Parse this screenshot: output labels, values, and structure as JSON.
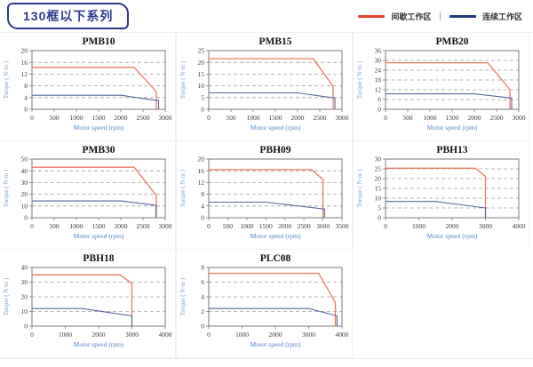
{
  "header": {
    "badge": "130框以下系列"
  },
  "legend": {
    "separator": "|",
    "items": [
      {
        "label": "间歇工作区",
        "color": "#e8432a"
      },
      {
        "label": "连续工作区",
        "color": "#1f3b7d"
      }
    ]
  },
  "style": {
    "intermittent_line_color": "#ec7a63",
    "continuous_line_color": "#55679e",
    "frame_color": "#7a7a7a",
    "grid_color": "#a0a0a0",
    "tick_text_color": "#3a3a3a",
    "xlabel_color": "#4f83c4",
    "ylabel_color": "#7aa3d4",
    "title_color": "#111111"
  },
  "chart_data": [
    {
      "type": "line",
      "title": "PMB10",
      "xlabel": "Motor speed (rpm)",
      "ylabel": "Torque ( N·m )",
      "xlim": [
        0,
        3000
      ],
      "xticks": [
        0,
        500,
        1000,
        1500,
        2000,
        2500,
        3000
      ],
      "ylim": [
        0,
        20
      ],
      "yticks": [
        0,
        4,
        8,
        12,
        16,
        20
      ],
      "series": [
        {
          "name": "间歇工作区",
          "kind": "intermittent",
          "points": [
            [
              0,
              14.3
            ],
            [
              2300,
              14.3
            ],
            [
              2800,
              6
            ],
            [
              2800,
              0
            ]
          ]
        },
        {
          "name": "连续工作区",
          "kind": "continuous",
          "points": [
            [
              0,
              4.8
            ],
            [
              2000,
              4.8
            ],
            [
              2800,
              3
            ],
            [
              2850,
              3
            ],
            [
              2850,
              0
            ]
          ]
        }
      ]
    },
    {
      "type": "line",
      "title": "PMB15",
      "xlabel": "Motor speed (rpm)",
      "ylabel": "Torque ( N·m )",
      "xlim": [
        0,
        3000
      ],
      "xticks": [
        0,
        500,
        1000,
        1500,
        2000,
        2500,
        3000
      ],
      "ylim": [
        0,
        25
      ],
      "yticks": [
        0,
        5,
        10,
        15,
        20,
        25
      ],
      "series": [
        {
          "name": "间歇工作区",
          "kind": "intermittent",
          "points": [
            [
              0,
              21.6
            ],
            [
              2350,
              21.6
            ],
            [
              2800,
              9.8
            ],
            [
              2800,
              0
            ]
          ]
        },
        {
          "name": "连续工作区",
          "kind": "continuous",
          "points": [
            [
              0,
              7
            ],
            [
              2000,
              7
            ],
            [
              2800,
              4.9
            ],
            [
              2840,
              4.9
            ],
            [
              2840,
              0
            ]
          ]
        }
      ]
    },
    {
      "type": "line",
      "title": "PMB20",
      "xlabel": "Motor speed (rpm)",
      "ylabel": "Torque ( N·m )",
      "xlim": [
        0,
        3000
      ],
      "xticks": [
        0,
        500,
        1000,
        1500,
        2000,
        2500,
        3000
      ],
      "ylim": [
        0,
        36
      ],
      "yticks": [
        0,
        6,
        12,
        18,
        24,
        30,
        36
      ],
      "series": [
        {
          "name": "间歇工作区",
          "kind": "intermittent",
          "points": [
            [
              0,
              28.6
            ],
            [
              2300,
              28.6
            ],
            [
              2800,
              12
            ],
            [
              2800,
              0
            ]
          ]
        },
        {
          "name": "连续工作区",
          "kind": "continuous",
          "points": [
            [
              0,
              9.5
            ],
            [
              2000,
              9.5
            ],
            [
              2800,
              7
            ],
            [
              2840,
              7
            ],
            [
              2840,
              0
            ]
          ]
        }
      ]
    },
    {
      "type": "line",
      "title": "PMB30",
      "xlabel": "Motor speed (rpm)",
      "ylabel": "Torque ( N·m )",
      "xlim": [
        0,
        3000
      ],
      "xticks": [
        0,
        500,
        1000,
        1500,
        2000,
        2500,
        3000
      ],
      "ylim": [
        0,
        50
      ],
      "yticks": [
        0,
        10,
        20,
        30,
        40,
        50
      ],
      "series": [
        {
          "name": "间歇工作区",
          "kind": "intermittent",
          "points": [
            [
              0,
              43
            ],
            [
              2300,
              43
            ],
            [
              2800,
              19
            ],
            [
              2800,
              0
            ]
          ]
        },
        {
          "name": "连续工作区",
          "kind": "continuous",
          "points": [
            [
              0,
              14.3
            ],
            [
              2000,
              14.3
            ],
            [
              2790,
              10.5
            ],
            [
              2790,
              0
            ]
          ]
        }
      ]
    },
    {
      "type": "line",
      "title": "PBH09",
      "xlabel": "Motor speed (rpm)",
      "ylabel": "Torque ( N·m )",
      "xlim": [
        0,
        3500
      ],
      "xticks": [
        0,
        500,
        1000,
        1500,
        2000,
        2500,
        3000,
        3500
      ],
      "ylim": [
        0,
        20
      ],
      "yticks": [
        0,
        4,
        8,
        12,
        16,
        20
      ],
      "series": [
        {
          "name": "间歇工作区",
          "kind": "intermittent",
          "points": [
            [
              0,
              16.4
            ],
            [
              2700,
              16.4
            ],
            [
              3000,
              13
            ],
            [
              3000,
              0
            ]
          ]
        },
        {
          "name": "连续工作区",
          "kind": "continuous",
          "points": [
            [
              0,
              5.3
            ],
            [
              1500,
              5.3
            ],
            [
              3000,
              3
            ],
            [
              3040,
              3
            ],
            [
              3040,
              0
            ]
          ]
        }
      ]
    },
    {
      "type": "line",
      "title": "PBH13",
      "xlabel": "Motor speed (rpm)",
      "ylabel": "Torque ( N·m )",
      "xlim": [
        0,
        4000
      ],
      "xticks": [
        0,
        1000,
        2000,
        3000,
        4000
      ],
      "ylim": [
        0,
        30
      ],
      "yticks": [
        0,
        5,
        10,
        15,
        20,
        25,
        30
      ],
      "series": [
        {
          "name": "间歇工作区",
          "kind": "intermittent",
          "points": [
            [
              0,
              25.3
            ],
            [
              2700,
              25.3
            ],
            [
              3000,
              21
            ],
            [
              3000,
              0
            ]
          ]
        },
        {
          "name": "连续工作区",
          "kind": "continuous",
          "points": [
            [
              0,
              8.3
            ],
            [
              1500,
              8.3
            ],
            [
              3000,
              5
            ],
            [
              3000,
              0
            ]
          ]
        }
      ]
    },
    {
      "type": "line",
      "title": "PBH18",
      "xlabel": "Motor speed (rpm)",
      "ylabel": "Torque ( N·m )",
      "xlim": [
        0,
        4000
      ],
      "xticks": [
        0,
        1000,
        2000,
        3000,
        4000
      ],
      "ylim": [
        0,
        40
      ],
      "yticks": [
        0,
        10,
        20,
        30,
        40
      ],
      "series": [
        {
          "name": "间歇工作区",
          "kind": "intermittent",
          "points": [
            [
              0,
              35
            ],
            [
              2650,
              35
            ],
            [
              3000,
              29
            ],
            [
              3000,
              0
            ]
          ]
        },
        {
          "name": "连续工作区",
          "kind": "continuous",
          "points": [
            [
              0,
              12
            ],
            [
              1500,
              12
            ],
            [
              3000,
              7
            ],
            [
              3000,
              0
            ]
          ]
        }
      ]
    },
    {
      "type": "line",
      "title": "PLC08",
      "xlabel": "Motor speed (rpm)",
      "ylabel": "Torque ( N·m )",
      "xlim": [
        0,
        4000
      ],
      "xticks": [
        0,
        1000,
        2000,
        3000,
        4000
      ],
      "ylim": [
        0,
        8
      ],
      "yticks": [
        0,
        2,
        4,
        6,
        8
      ],
      "series": [
        {
          "name": "间歇工作区",
          "kind": "intermittent",
          "points": [
            [
              0,
              7.2
            ],
            [
              3300,
              7.2
            ],
            [
              3800,
              3.2
            ],
            [
              3800,
              0
            ]
          ]
        },
        {
          "name": "连续工作区",
          "kind": "continuous",
          "points": [
            [
              0,
              2.4
            ],
            [
              3000,
              2.4
            ],
            [
              3850,
              1.4
            ],
            [
              3850,
              0
            ]
          ]
        }
      ]
    }
  ]
}
